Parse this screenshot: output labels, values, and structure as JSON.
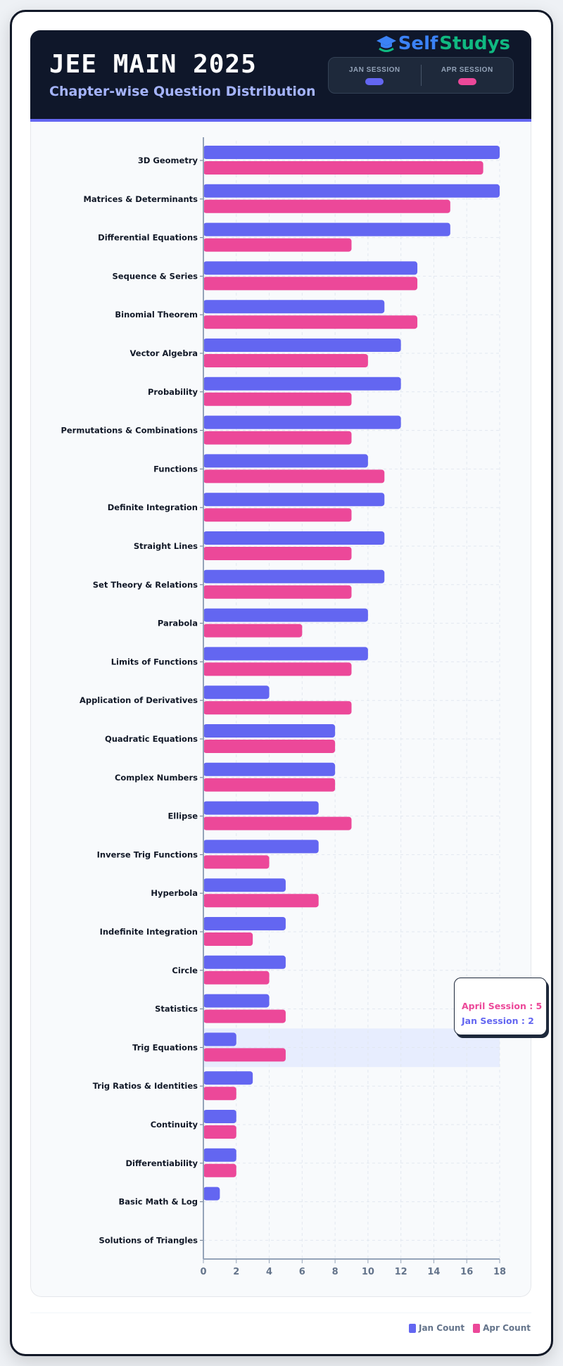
{
  "header": {
    "title": "JEE MAIN 2025",
    "subtitle": "Chapter-wise Question Distribution",
    "logo_self": "Self",
    "logo_studys": "Studys",
    "sessions": [
      {
        "label": "JAN SESSION",
        "color": "#6366f1"
      },
      {
        "label": "APR SESSION",
        "color": "#ec4899"
      }
    ]
  },
  "tooltip": {
    "category": "Trig Equations",
    "april": "April Session : 5",
    "jan": "Jan Session : 2"
  },
  "legend": [
    {
      "label": "Jan Count",
      "color": "#6366f1"
    },
    {
      "label": "Apr Count",
      "color": "#ec4899"
    }
  ],
  "chart_data": {
    "type": "bar",
    "orientation": "horizontal",
    "categories": [
      "3D Geometry",
      "Matrices & Determinants",
      "Differential Equations",
      "Sequence & Series",
      "Binomial Theorem",
      "Vector Algebra",
      "Probability",
      "Permutations & Combinations",
      "Functions",
      "Definite Integration",
      "Straight Lines",
      "Set Theory & Relations",
      "Parabola",
      "Limits of Functions",
      "Application of Derivatives",
      "Quadratic Equations",
      "Complex Numbers",
      "Ellipse",
      "Inverse Trig Functions",
      "Hyperbola",
      "Indefinite Integration",
      "Circle",
      "Statistics",
      "Trig Equations",
      "Trig Ratios & Identities",
      "Continuity",
      "Differentiability",
      "Basic Math & Log",
      "Solutions of Triangles"
    ],
    "series": [
      {
        "name": "Jan Count",
        "color": "#6366f1",
        "values": [
          18,
          18,
          15,
          13,
          11,
          12,
          12,
          12,
          10,
          11,
          11,
          11,
          10,
          10,
          4,
          8,
          8,
          7,
          7,
          5,
          5,
          5,
          4,
          2,
          3,
          2,
          2,
          1,
          0
        ]
      },
      {
        "name": "Apr Count",
        "color": "#ec4899",
        "values": [
          17,
          15,
          9,
          13,
          13,
          10,
          9,
          9,
          11,
          9,
          9,
          9,
          6,
          9,
          9,
          8,
          8,
          9,
          4,
          7,
          3,
          4,
          5,
          5,
          2,
          2,
          2,
          0,
          0
        ]
      }
    ],
    "xlim": [
      0,
      18
    ],
    "xticks": [
      0,
      2,
      4,
      6,
      8,
      10,
      12,
      14,
      16,
      18
    ],
    "grid": true,
    "legend": "bottom-right",
    "highlighted_category": "Trig Equations"
  }
}
